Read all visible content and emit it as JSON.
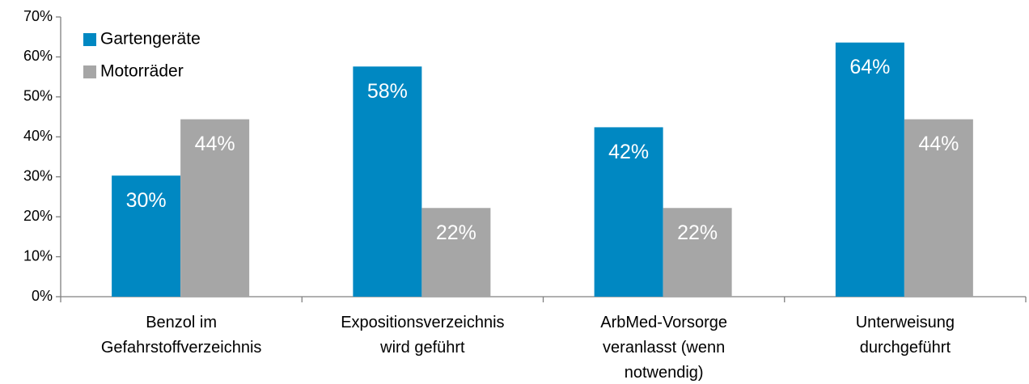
{
  "chart_data": {
    "type": "bar",
    "categories": [
      "Benzol im\nGefahrstoffverzeichnis",
      "Expositionsverzeichnis\nwird geführt",
      "ArbMed-Vorsorge\nveranlasst (wenn\nnotwendig)",
      "Unterweisung\ndurchgeführt"
    ],
    "series": [
      {
        "name": "Gartengeräte",
        "color": "#0088c2",
        "values": [
          30.3,
          57.6,
          42.4,
          63.6
        ],
        "value_labels": [
          "30%",
          "58%",
          "42%",
          "64%"
        ]
      },
      {
        "name": "Motorräder",
        "color": "#a6a6a6",
        "values": [
          44.4,
          22.2,
          22.2,
          44.4
        ],
        "value_labels": [
          "44%",
          "22%",
          "22%",
          "44%"
        ]
      }
    ],
    "ylim": [
      0,
      70
    ],
    "yticks": [
      {
        "value": 0,
        "label": "0%"
      },
      {
        "value": 10,
        "label": "10%"
      },
      {
        "value": 20,
        "label": "20%"
      },
      {
        "value": 30,
        "label": "30%"
      },
      {
        "value": 40,
        "label": "40%"
      },
      {
        "value": 50,
        "label": "50%"
      },
      {
        "value": 60,
        "label": "60%"
      },
      {
        "value": 70,
        "label": "70%"
      }
    ],
    "legend": "top-left",
    "grid": false
  }
}
